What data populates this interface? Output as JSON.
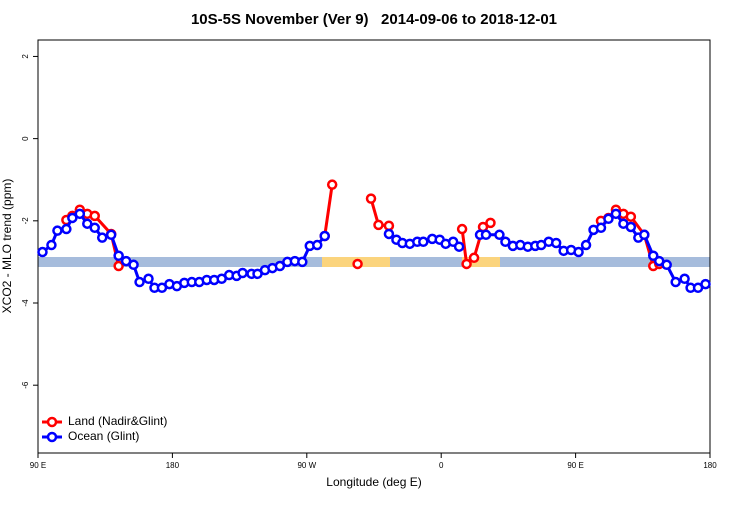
{
  "chart_data": {
    "type": "line",
    "title": "10S-5S November (Ver 9)   2014-09-06 to 2018-12-01",
    "xlabel": "Longitude (deg E)",
    "ylabel": "XCO2 - MLO trend (ppm)",
    "xlim": [
      90,
      540
    ],
    "ylim": [
      -7.65,
      2.4
    ],
    "xticks": [
      {
        "value": 90,
        "label": "90 E"
      },
      {
        "value": 180,
        "label": "180"
      },
      {
        "value": 270,
        "label": "90 W"
      },
      {
        "value": 360,
        "label": "0"
      },
      {
        "value": 450,
        "label": "90 E"
      },
      {
        "value": 540,
        "label": "180"
      }
    ],
    "yticks": [
      2,
      0,
      -2,
      -4,
      -6
    ],
    "legend": "bottom-left",
    "series": [
      {
        "name": "Land (Nadir&Glint)",
        "color": "#ff0000",
        "x": [
          109,
          113,
          118,
          123,
          128,
          139,
          144,
          null,
          282,
          287,
          null,
          304,
          null,
          313,
          318,
          325,
          null,
          374,
          377,
          382,
          388,
          393,
          null,
          467,
          472,
          477,
          482,
          487,
          496,
          502,
          506
        ],
        "values": [
          -1.98,
          -1.88,
          -1.73,
          -1.83,
          -1.88,
          -2.32,
          -3.1,
          null,
          -2.37,
          -1.12,
          null,
          -3.05,
          null,
          -1.46,
          -2.1,
          -2.12,
          null,
          -2.2,
          -3.05,
          -2.9,
          -2.15,
          -2.05,
          null,
          -2.0,
          -1.93,
          -1.73,
          -1.83,
          -1.9,
          -2.34,
          -3.1,
          -3.05
        ]
      },
      {
        "name": "Ocean (Glint)",
        "color": "#0000ff",
        "x": [
          93,
          99,
          103,
          109,
          113,
          118,
          123,
          128,
          133,
          139,
          144,
          149,
          154,
          158,
          164,
          168,
          173,
          178,
          183,
          188,
          193,
          198,
          203,
          208,
          213,
          218,
          223,
          227,
          233,
          237,
          242,
          247,
          252,
          257,
          262,
          267,
          272,
          277,
          282,
          null,
          325,
          330,
          334,
          339,
          344,
          348,
          354,
          359,
          363,
          368,
          372,
          null,
          386,
          390,
          399,
          403,
          408,
          413,
          418,
          423,
          427,
          432,
          437,
          442,
          447,
          452,
          457,
          462,
          467,
          472,
          477,
          482,
          487,
          492,
          496,
          502,
          506,
          511,
          517,
          523,
          527,
          532,
          537
        ],
        "values": [
          -2.76,
          -2.59,
          -2.24,
          -2.2,
          -1.93,
          -1.83,
          -2.07,
          -2.17,
          -2.41,
          -2.34,
          -2.85,
          -2.98,
          -3.07,
          -3.49,
          -3.41,
          -3.63,
          -3.63,
          -3.54,
          -3.59,
          -3.51,
          -3.49,
          -3.49,
          -3.44,
          -3.44,
          -3.41,
          -3.32,
          -3.34,
          -3.27,
          -3.29,
          -3.29,
          -3.2,
          -3.15,
          -3.1,
          -3.0,
          -2.98,
          -3.0,
          -2.61,
          -2.59,
          -2.37,
          null,
          -2.32,
          -2.46,
          -2.54,
          -2.56,
          -2.51,
          -2.51,
          -2.44,
          -2.46,
          -2.56,
          -2.51,
          -2.63,
          null,
          -2.34,
          -2.34,
          -2.34,
          -2.51,
          -2.61,
          -2.59,
          -2.63,
          -2.61,
          -2.59,
          -2.51,
          -2.54,
          -2.73,
          -2.71,
          -2.76,
          -2.59,
          -2.22,
          -2.17,
          -1.95,
          -1.83,
          -2.07,
          -2.15,
          -2.41,
          -2.34,
          -2.85,
          -2.98,
          -3.07,
          -3.49,
          -3.41,
          -3.63,
          -3.63,
          -3.54
        ]
      }
    ]
  }
}
